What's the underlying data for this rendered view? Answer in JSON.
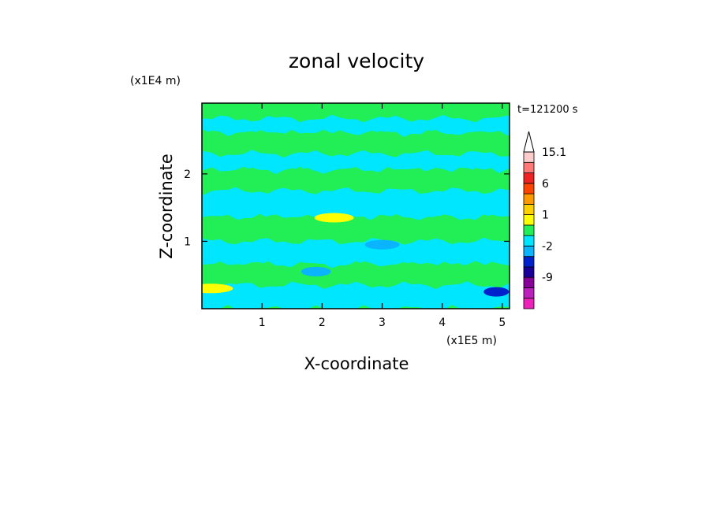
{
  "chart_data": {
    "type": "heatmap",
    "title": "zonal velocity",
    "xlabel": "X-coordinate",
    "ylabel": "Z-coordinate",
    "x_unit": "(x1E5 m)",
    "y_unit": "(x1E4 m)",
    "time_label": "t=121200 s",
    "xlim": [
      0,
      5.12
    ],
    "ylim": [
      0,
      3.05
    ],
    "x_ticks": [
      {
        "value": 1,
        "label": "1"
      },
      {
        "value": 2,
        "label": "2"
      },
      {
        "value": 3,
        "label": "3"
      },
      {
        "value": 4,
        "label": "4"
      },
      {
        "value": 5,
        "label": "5"
      }
    ],
    "y_ticks": [
      {
        "value": 1,
        "label": "1"
      },
      {
        "value": 2,
        "label": "2"
      }
    ],
    "colorbar": {
      "levels": [
        -15,
        -12,
        -9,
        -6,
        -4,
        -2,
        -1,
        0,
        1,
        2,
        4,
        6,
        9,
        12,
        15.1
      ],
      "colors": [
        "#ee22bb",
        "#bb22bb",
        "#880099",
        "#1a0099",
        "#0022cc",
        "#0ab4ff",
        "#00e6ff",
        "#22ee55",
        "#ffff00",
        "#ffd000",
        "#ff9900",
        "#ff4400",
        "#ee2222",
        "#ff7777",
        "#ffcccc"
      ],
      "labels": [
        "15.1",
        "6",
        "1",
        "-2",
        "-9"
      ],
      "extend": "max"
    },
    "bands": [
      {
        "z_top": 3.05,
        "z_bottom": 2.82,
        "value": 0.5
      },
      {
        "z_top": 2.82,
        "z_bottom": 2.6,
        "value": -0.5
      },
      {
        "z_top": 2.6,
        "z_bottom": 2.3,
        "value": 0.5
      },
      {
        "z_top": 2.3,
        "z_bottom": 2.05,
        "value": -0.5
      },
      {
        "z_top": 2.05,
        "z_bottom": 1.75,
        "value": 0.5
      },
      {
        "z_top": 1.75,
        "z_bottom": 1.35,
        "value": -0.5
      },
      {
        "z_top": 1.35,
        "z_bottom": 1.0,
        "value": 0.5
      },
      {
        "z_top": 1.0,
        "z_bottom": 0.65,
        "value": -0.5
      },
      {
        "z_top": 0.65,
        "z_bottom": 0.35,
        "value": 0.5
      },
      {
        "z_top": 0.35,
        "z_bottom": 0.0,
        "value": -0.5
      }
    ],
    "features": [
      {
        "x": 0.15,
        "z": 0.3,
        "value": 1.5
      },
      {
        "x": 2.2,
        "z": 1.35,
        "value": 1.5
      },
      {
        "x": 3.0,
        "z": 0.95,
        "value": -1.5
      },
      {
        "x": 1.9,
        "z": 0.55,
        "value": -1.5
      },
      {
        "x": 4.9,
        "z": 0.25,
        "value": -3
      }
    ]
  }
}
